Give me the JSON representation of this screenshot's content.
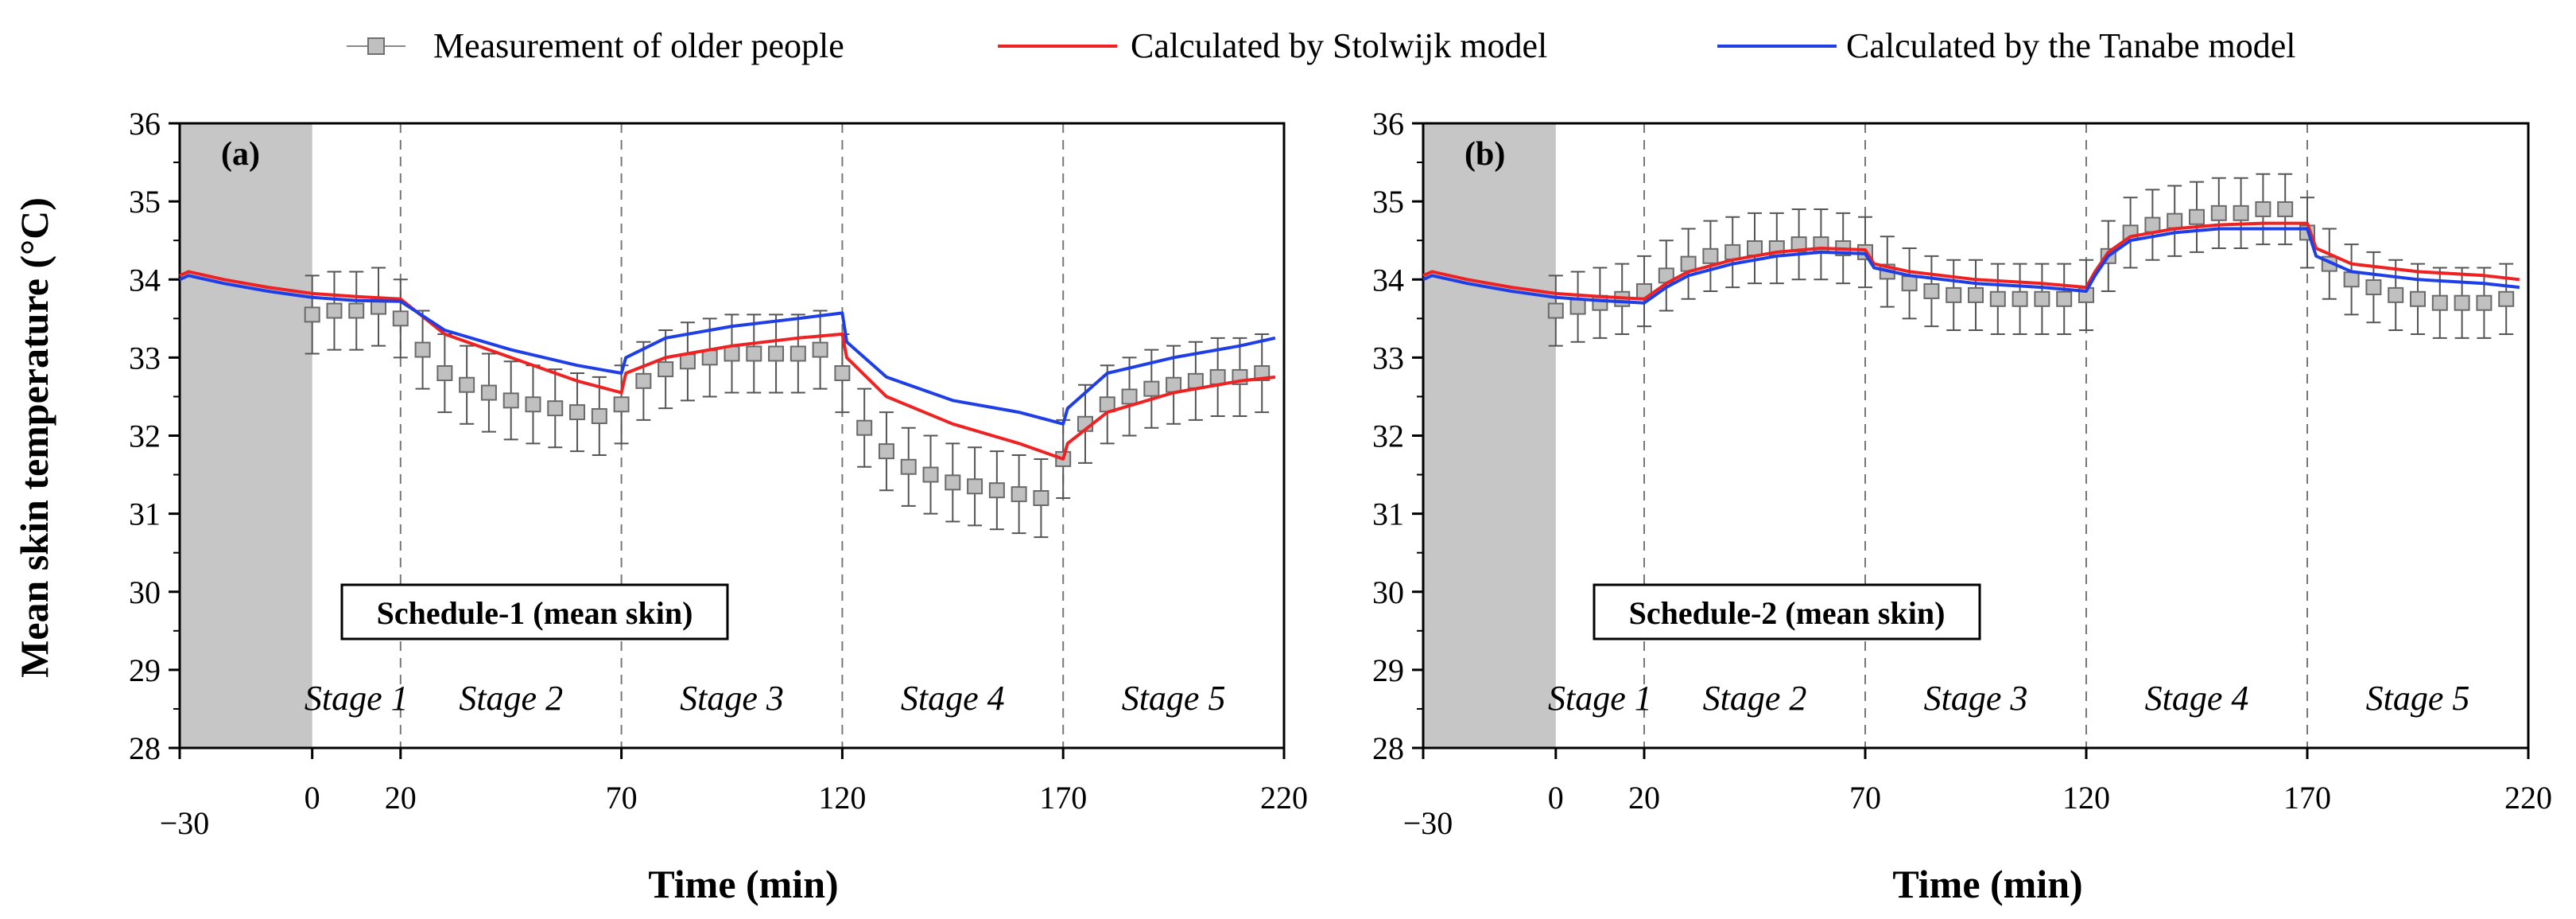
{
  "legend": {
    "items": [
      {
        "label": "Measurement of older people",
        "kind": "marker",
        "color": "#999999"
      },
      {
        "label": "Calculated by Stolwijk model",
        "kind": "line",
        "color": "#ee2222"
      },
      {
        "label": "Calculated by the Tanabe model",
        "kind": "line",
        "color": "#1f3fe6"
      }
    ]
  },
  "shared": {
    "ylabel": "Mean skin temperature (°C)",
    "xlabel": "Time (min)",
    "x_tick_labels": [
      "−30",
      "0",
      "20",
      "70",
      "120",
      "170",
      "220"
    ],
    "y_tick_labels": [
      "28",
      "29",
      "30",
      "31",
      "32",
      "33",
      "34",
      "35",
      "36"
    ]
  },
  "chart_data": [
    {
      "type": "line",
      "panel_label": "(a)",
      "annotation": "Schedule-1 (mean skin)",
      "xlabel": "Time (min)",
      "ylabel": "Mean skin temperature (°C)",
      "xlim": [
        -30,
        220
      ],
      "ylim": [
        28,
        36
      ],
      "x_ticks": [
        -30,
        0,
        20,
        70,
        120,
        170,
        220
      ],
      "y_ticks": [
        28,
        29,
        30,
        31,
        32,
        33,
        34,
        35,
        36
      ],
      "shaded_region": [
        -30,
        0
      ],
      "stage_boundaries": [
        20,
        70,
        120,
        170
      ],
      "stages": [
        {
          "label": "Stage 1",
          "x": 10
        },
        {
          "label": "Stage 2",
          "x": 45
        },
        {
          "label": "Stage 3",
          "x": 95
        },
        {
          "label": "Stage 4",
          "x": 145
        },
        {
          "label": "Stage 5",
          "x": 195
        }
      ],
      "series": [
        {
          "name": "Calculated by Stolwijk model",
          "type": "line",
          "color": "#ee2222",
          "x": [
            -30,
            -28,
            -20,
            -10,
            0,
            10,
            20,
            30,
            45,
            60,
            70,
            71,
            80,
            95,
            110,
            120,
            121,
            130,
            145,
            160,
            170,
            171,
            180,
            195,
            210,
            218
          ],
          "y": [
            34.05,
            34.1,
            34.0,
            33.9,
            33.82,
            33.78,
            33.75,
            33.3,
            33.0,
            32.7,
            32.55,
            32.8,
            33.0,
            33.15,
            33.25,
            33.3,
            33.0,
            32.5,
            32.15,
            31.9,
            31.7,
            31.9,
            32.3,
            32.55,
            32.7,
            32.75
          ]
        },
        {
          "name": "Calculated by the Tanabe model",
          "type": "line",
          "color": "#1f3fe6",
          "x": [
            -30,
            -28,
            -20,
            -10,
            0,
            10,
            20,
            30,
            45,
            60,
            70,
            71,
            80,
            95,
            110,
            120,
            121,
            130,
            145,
            160,
            170,
            171,
            180,
            195,
            210,
            218
          ],
          "y": [
            34.0,
            34.05,
            33.95,
            33.85,
            33.77,
            33.73,
            33.72,
            33.35,
            33.1,
            32.9,
            32.8,
            33.0,
            33.25,
            33.4,
            33.5,
            33.57,
            33.2,
            32.75,
            32.45,
            32.3,
            32.15,
            32.35,
            32.8,
            33.0,
            33.15,
            33.25
          ]
        },
        {
          "name": "Measurement of older people",
          "type": "scatter",
          "color": "#999999",
          "error": 0.5,
          "x": [
            0,
            5,
            10,
            15,
            20,
            25,
            30,
            35,
            40,
            45,
            50,
            55,
            60,
            65,
            70,
            75,
            80,
            85,
            90,
            95,
            100,
            105,
            110,
            115,
            120,
            125,
            130,
            135,
            140,
            145,
            150,
            155,
            160,
            165,
            170,
            175,
            180,
            185,
            190,
            195,
            200,
            205,
            210,
            215
          ],
          "y": [
            33.55,
            33.6,
            33.6,
            33.65,
            33.5,
            33.1,
            32.8,
            32.65,
            32.55,
            32.45,
            32.4,
            32.35,
            32.3,
            32.25,
            32.4,
            32.7,
            32.85,
            32.95,
            33.0,
            33.05,
            33.05,
            33.05,
            33.05,
            33.1,
            32.8,
            32.1,
            31.8,
            31.6,
            31.5,
            31.4,
            31.35,
            31.3,
            31.25,
            31.2,
            31.7,
            32.15,
            32.4,
            32.5,
            32.6,
            32.65,
            32.7,
            32.75,
            32.75,
            32.8
          ]
        }
      ]
    },
    {
      "type": "line",
      "panel_label": "(b)",
      "annotation": "Schedule-2 (mean skin)",
      "xlabel": "Time (min)",
      "ylabel": "",
      "xlim": [
        -30,
        220
      ],
      "ylim": [
        28,
        36
      ],
      "x_ticks": [
        -30,
        0,
        20,
        70,
        120,
        170,
        220
      ],
      "y_ticks": [
        28,
        29,
        30,
        31,
        32,
        33,
        34,
        35,
        36
      ],
      "shaded_region": [
        -30,
        0
      ],
      "stage_boundaries": [
        20,
        70,
        120,
        170
      ],
      "stages": [
        {
          "label": "Stage 1",
          "x": 10
        },
        {
          "label": "Stage 2",
          "x": 45
        },
        {
          "label": "Stage 3",
          "x": 95
        },
        {
          "label": "Stage 4",
          "x": 145
        },
        {
          "label": "Stage 5",
          "x": 195
        }
      ],
      "series": [
        {
          "name": "Calculated by Stolwijk model",
          "type": "line",
          "color": "#ee2222",
          "x": [
            -30,
            -28,
            -20,
            -10,
            0,
            10,
            20,
            25,
            30,
            40,
            50,
            60,
            70,
            72,
            80,
            95,
            110,
            120,
            122,
            125,
            130,
            140,
            150,
            160,
            170,
            172,
            180,
            195,
            210,
            218
          ],
          "y": [
            34.05,
            34.1,
            34.0,
            33.9,
            33.82,
            33.78,
            33.75,
            33.95,
            34.1,
            34.25,
            34.35,
            34.4,
            34.38,
            34.2,
            34.1,
            34.0,
            33.95,
            33.9,
            34.1,
            34.35,
            34.55,
            34.65,
            34.7,
            34.72,
            34.72,
            34.4,
            34.2,
            34.1,
            34.05,
            34.0
          ]
        },
        {
          "name": "Calculated by the Tanabe model",
          "type": "line",
          "color": "#1f3fe6",
          "x": [
            -30,
            -28,
            -20,
            -10,
            0,
            10,
            20,
            25,
            30,
            40,
            50,
            60,
            70,
            72,
            80,
            95,
            110,
            120,
            122,
            125,
            130,
            140,
            150,
            160,
            170,
            172,
            180,
            195,
            210,
            218
          ],
          "y": [
            34.0,
            34.05,
            33.95,
            33.85,
            33.77,
            33.73,
            33.7,
            33.9,
            34.05,
            34.2,
            34.3,
            34.35,
            34.33,
            34.15,
            34.05,
            33.95,
            33.9,
            33.85,
            34.05,
            34.3,
            34.5,
            34.6,
            34.65,
            34.65,
            34.65,
            34.3,
            34.1,
            34.0,
            33.95,
            33.9
          ]
        },
        {
          "name": "Measurement of older people",
          "type": "scatter",
          "color": "#999999",
          "error": 0.45,
          "x": [
            0,
            5,
            10,
            15,
            20,
            25,
            30,
            35,
            40,
            45,
            50,
            55,
            60,
            65,
            70,
            75,
            80,
            85,
            90,
            95,
            100,
            105,
            110,
            115,
            120,
            125,
            130,
            135,
            140,
            145,
            150,
            155,
            160,
            165,
            170,
            175,
            180,
            185,
            190,
            195,
            200,
            205,
            210,
            215
          ],
          "y": [
            33.6,
            33.65,
            33.7,
            33.75,
            33.85,
            34.05,
            34.2,
            34.3,
            34.35,
            34.4,
            34.4,
            34.45,
            34.45,
            34.4,
            34.35,
            34.1,
            33.95,
            33.85,
            33.8,
            33.8,
            33.75,
            33.75,
            33.75,
            33.75,
            33.8,
            34.3,
            34.6,
            34.7,
            34.75,
            34.8,
            34.85,
            34.85,
            34.9,
            34.9,
            34.6,
            34.2,
            34.0,
            33.9,
            33.8,
            33.75,
            33.7,
            33.7,
            33.7,
            33.75
          ]
        }
      ]
    }
  ]
}
